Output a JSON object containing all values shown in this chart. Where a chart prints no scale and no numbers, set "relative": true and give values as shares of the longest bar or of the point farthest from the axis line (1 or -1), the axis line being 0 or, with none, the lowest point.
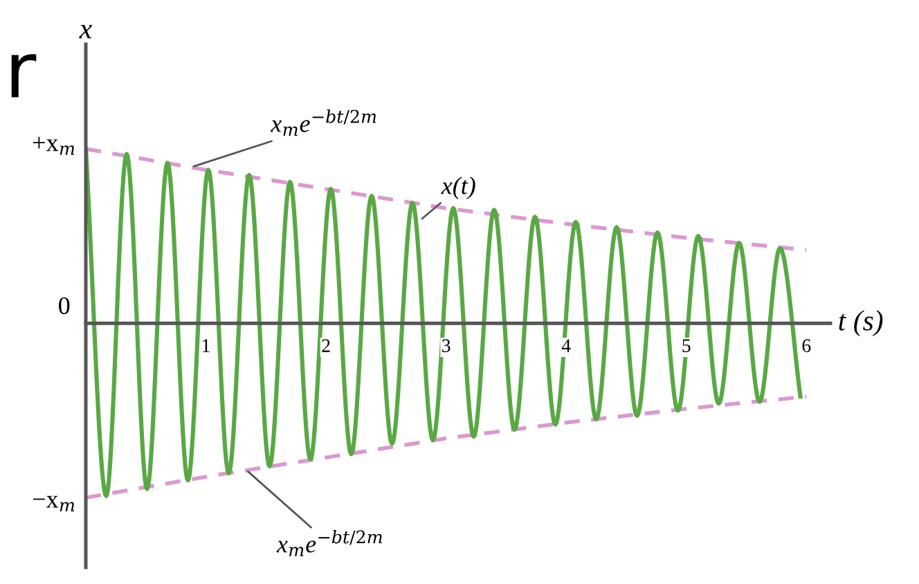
{
  "chart_data": {
    "type": "line",
    "xlabel": "t (s)",
    "ylabel": "x",
    "xlim": [
      0,
      6.2
    ],
    "xticks": [
      1,
      2,
      3,
      4,
      5,
      6
    ],
    "relative": true,
    "tick_labels": "x",
    "grid": false,
    "marker": "none",
    "series": [
      {
        "color": "#5aa845",
        "line_style": "solid",
        "x": [
          0,
          0.17,
          0.34,
          0.51,
          0.68,
          0.85,
          1.02,
          1.19,
          1.36,
          1.53,
          1.7,
          1.87,
          2.04,
          2.21,
          2.38,
          2.55,
          2.72,
          2.89,
          3.06,
          3.23,
          3.4,
          3.57,
          3.74,
          3.91,
          4.08,
          4.25,
          4.42,
          4.59,
          4.76,
          4.93,
          5.1,
          5.27,
          5.44,
          5.61,
          5.78,
          5.95
        ],
        "values": [
          1.0,
          -0.99,
          0.97,
          -0.95,
          0.92,
          -0.9,
          0.88,
          -0.86,
          0.85,
          -0.82,
          0.81,
          -0.78,
          0.77,
          -0.75,
          0.73,
          -0.69,
          0.69,
          -0.67,
          0.66,
          -0.65,
          0.65,
          -0.61,
          0.61,
          -0.58,
          0.58,
          -0.55,
          0.55,
          -0.53,
          0.52,
          -0.5,
          0.5,
          -0.46,
          0.46,
          -0.45,
          0.43,
          -0.42
        ]
      },
      {
        "color": "#d99ad0",
        "line_style": "dashed",
        "x": [
          0,
          1,
          2,
          3,
          4,
          5,
          6
        ],
        "values": [
          1.0,
          0.88,
          0.77,
          0.66,
          0.57,
          0.49,
          0.42
        ]
      },
      {
        "color": "#d99ad0",
        "line_style": "dashed",
        "x": [
          0,
          1,
          2,
          3,
          4,
          5,
          6
        ],
        "values": [
          -1.0,
          -0.88,
          -0.77,
          -0.66,
          -0.57,
          -0.49,
          -0.42
        ]
      }
    ],
    "annotations": [
      "r",
      {
        "text": "x$_{m}$e$^{−bt/2m}$",
        "x": 0.9,
        "y": 0.9
      },
      {
        "text": "x(t)",
        "x": 2.8,
        "y": 0.6
      },
      {
        "text": "x$_{m}$e$^{−bt/2m}$",
        "x": 1.35,
        "y": -0.85
      },
      {
        "text": "+x$_{m}$",
        "x": 0,
        "y": 1.0
      },
      {
        "text": "0",
        "x": 0,
        "y": 0
      },
      {
        "text": "−x$_{m}$",
        "x": 0,
        "y": -1.0
      }
    ]
  }
}
